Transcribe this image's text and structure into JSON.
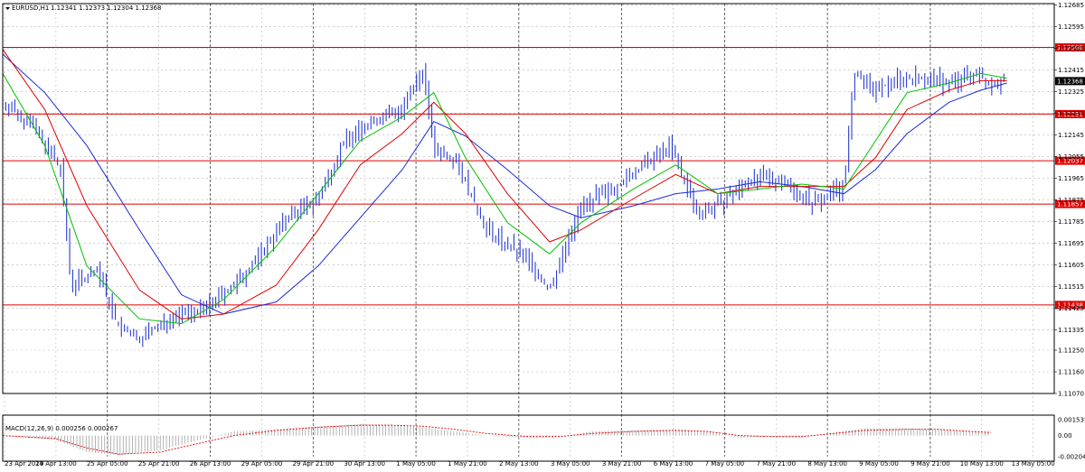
{
  "header": {
    "symbol": "EURUSD,H1",
    "ohlc": "1.12341 1.12373 1.12304 1.12368",
    "menu_icon": "triangle-down-icon"
  },
  "colors": {
    "candles": "#2a3ecf",
    "ma_fast": "#00c000",
    "ma_mid": "#e00000",
    "ma_slow": "#1c2bd8",
    "level_line": "#e00000",
    "level_tag_bg": "#e00000",
    "price_tag_bg": "#000000",
    "grid": "#b4b4b4",
    "macd_hist": "#a0a0a0",
    "macd_signal": "#e00000"
  },
  "chart_data": [
    {
      "type": "candlestick",
      "title": "EURUSD,H1",
      "ylim": [
        1.1107,
        1.1269
      ],
      "y_ticks": [
        "1.12685",
        "1.12595",
        "1.12505",
        "1.12415",
        "1.12325",
        "1.12235",
        "1.12145",
        "1.12055",
        "1.11965",
        "1.11875",
        "1.11785",
        "1.11695",
        "1.11605",
        "1.11515",
        "1.11425",
        "1.11335",
        "1.11250",
        "1.11160",
        "1.11070"
      ],
      "x_labels": [
        "23 Apr 2019",
        "24 Apr 13:00",
        "25 Apr 05:00",
        "25 Apr 21:00",
        "26 Apr 13:00",
        "29 Apr 05:00",
        "29 Apr 21:00",
        "30 Apr 13:00",
        "1 May 05:00",
        "1 May 21:00",
        "2 May 13:00",
        "3 May 05:00",
        "3 May 21:00",
        "6 May 13:00",
        "7 May 05:00",
        "7 May 21:00",
        "8 May 13:00",
        "9 May 05:00",
        "9 May 21:00",
        "10 May 13:00",
        "13 May 05:00"
      ],
      "horizontal_levels": [
        "1.12508",
        "1.12231",
        "1.12037",
        "1.11857",
        "1.11438"
      ],
      "last_price": "1.12368",
      "price_path": [
        [
          0,
          1.1228
        ],
        [
          0.03,
          1.1218
        ],
        [
          0.055,
          1.12
        ],
        [
          0.065,
          1.1152
        ],
        [
          0.09,
          1.1158
        ],
        [
          0.11,
          1.1135
        ],
        [
          0.13,
          1.113
        ],
        [
          0.16,
          1.1138
        ],
        [
          0.19,
          1.1142
        ],
        [
          0.22,
          1.1152
        ],
        [
          0.24,
          1.1162
        ],
        [
          0.27,
          1.118
        ],
        [
          0.3,
          1.1188
        ],
        [
          0.325,
          1.1212
        ],
        [
          0.35,
          1.122
        ],
        [
          0.38,
          1.1225
        ],
        [
          0.4,
          1.1242
        ],
        [
          0.41,
          1.1208
        ],
        [
          0.43,
          1.1205
        ],
        [
          0.46,
          1.1175
        ],
        [
          0.5,
          1.1162
        ],
        [
          0.52,
          1.115
        ],
        [
          0.55,
          1.1185
        ],
        [
          0.58,
          1.1192
        ],
        [
          0.61,
          1.1202
        ],
        [
          0.635,
          1.121
        ],
        [
          0.66,
          1.1182
        ],
        [
          0.68,
          1.1185
        ],
        [
          0.71,
          1.1196
        ],
        [
          0.74,
          1.1196
        ],
        [
          0.77,
          1.1186
        ],
        [
          0.8,
          1.1194
        ],
        [
          0.81,
          1.124
        ],
        [
          0.83,
          1.1232
        ],
        [
          0.85,
          1.1238
        ],
        [
          0.87,
          1.1238
        ],
        [
          0.9,
          1.1236
        ],
        [
          0.925,
          1.124
        ],
        [
          0.94,
          1.1236
        ],
        [
          0.955,
          1.1238
        ]
      ],
      "ma_fast_path": [
        [
          0,
          1.124
        ],
        [
          0.04,
          1.121
        ],
        [
          0.08,
          1.116
        ],
        [
          0.13,
          1.1138
        ],
        [
          0.17,
          1.1136
        ],
        [
          0.21,
          1.1146
        ],
        [
          0.26,
          1.1168
        ],
        [
          0.3,
          1.119
        ],
        [
          0.34,
          1.1212
        ],
        [
          0.38,
          1.1222
        ],
        [
          0.41,
          1.1232
        ],
        [
          0.44,
          1.1205
        ],
        [
          0.48,
          1.1178
        ],
        [
          0.52,
          1.1165
        ],
        [
          0.55,
          1.1178
        ],
        [
          0.6,
          1.1192
        ],
        [
          0.64,
          1.1202
        ],
        [
          0.68,
          1.119
        ],
        [
          0.72,
          1.1192
        ],
        [
          0.76,
          1.1194
        ],
        [
          0.8,
          1.1192
        ],
        [
          0.83,
          1.1212
        ],
        [
          0.86,
          1.1232
        ],
        [
          0.9,
          1.1236
        ],
        [
          0.93,
          1.124
        ],
        [
          0.955,
          1.1238
        ]
      ],
      "ma_mid_path": [
        [
          0,
          1.125
        ],
        [
          0.04,
          1.1225
        ],
        [
          0.08,
          1.1185
        ],
        [
          0.13,
          1.115
        ],
        [
          0.17,
          1.1138
        ],
        [
          0.21,
          1.114
        ],
        [
          0.26,
          1.1152
        ],
        [
          0.3,
          1.1175
        ],
        [
          0.34,
          1.1202
        ],
        [
          0.38,
          1.1215
        ],
        [
          0.41,
          1.1228
        ],
        [
          0.44,
          1.1215
        ],
        [
          0.48,
          1.119
        ],
        [
          0.52,
          1.117
        ],
        [
          0.55,
          1.1175
        ],
        [
          0.6,
          1.1188
        ],
        [
          0.64,
          1.1198
        ],
        [
          0.68,
          1.119
        ],
        [
          0.72,
          1.1193
        ],
        [
          0.76,
          1.1193
        ],
        [
          0.8,
          1.1193
        ],
        [
          0.83,
          1.1205
        ],
        [
          0.86,
          1.1225
        ],
        [
          0.9,
          1.1233
        ],
        [
          0.93,
          1.1237
        ],
        [
          0.955,
          1.1237
        ]
      ],
      "ma_slow_path": [
        [
          0,
          1.1248
        ],
        [
          0.04,
          1.1232
        ],
        [
          0.08,
          1.121
        ],
        [
          0.13,
          1.1175
        ],
        [
          0.17,
          1.1148
        ],
        [
          0.21,
          1.114
        ],
        [
          0.26,
          1.1145
        ],
        [
          0.3,
          1.116
        ],
        [
          0.34,
          1.118
        ],
        [
          0.38,
          1.12
        ],
        [
          0.41,
          1.122
        ],
        [
          0.44,
          1.1214
        ],
        [
          0.48,
          1.12
        ],
        [
          0.52,
          1.1185
        ],
        [
          0.55,
          1.118
        ],
        [
          0.6,
          1.1185
        ],
        [
          0.64,
          1.119
        ],
        [
          0.68,
          1.1192
        ],
        [
          0.72,
          1.1195
        ],
        [
          0.76,
          1.1193
        ],
        [
          0.8,
          1.119
        ],
        [
          0.83,
          1.12
        ],
        [
          0.86,
          1.1215
        ],
        [
          0.9,
          1.1228
        ],
        [
          0.93,
          1.1233
        ],
        [
          0.955,
          1.1236
        ]
      ]
    },
    {
      "type": "bar",
      "title": "MACD(12,26,9) 0.000256 0.000267",
      "ylim": [
        -0.002041,
        0.001535
      ],
      "y_ticks": [
        "0.001535",
        "0.00",
        "-0.002041"
      ],
      "macd_path": [
        [
          0,
          0.0
        ],
        [
          0.05,
          -0.0004
        ],
        [
          0.08,
          -0.0016
        ],
        [
          0.11,
          -0.0019
        ],
        [
          0.15,
          -0.0014
        ],
        [
          0.18,
          -0.0006
        ],
        [
          0.22,
          0.0004
        ],
        [
          0.26,
          0.0006
        ],
        [
          0.3,
          0.0009
        ],
        [
          0.34,
          0.0011
        ],
        [
          0.37,
          0.001
        ],
        [
          0.4,
          0.0008
        ],
        [
          0.43,
          0.0004
        ],
        [
          0.46,
          0.0
        ],
        [
          0.5,
          -0.0002
        ],
        [
          0.53,
          -0.0001
        ],
        [
          0.56,
          0.0004
        ],
        [
          0.6,
          0.0005
        ],
        [
          0.64,
          0.0006
        ],
        [
          0.67,
          0.0004
        ],
        [
          0.7,
          -0.0002
        ],
        [
          0.73,
          -0.0001
        ],
        [
          0.76,
          -0.0002
        ],
        [
          0.79,
          0.0003
        ],
        [
          0.82,
          0.0007
        ],
        [
          0.86,
          0.0007
        ],
        [
          0.89,
          0.0006
        ],
        [
          0.92,
          0.0004
        ],
        [
          0.94,
          0.0003
        ]
      ],
      "signal_path": [
        [
          0,
          0.0
        ],
        [
          0.05,
          -0.0003
        ],
        [
          0.08,
          -0.0012
        ],
        [
          0.11,
          -0.0018
        ],
        [
          0.15,
          -0.0016
        ],
        [
          0.18,
          -0.0009
        ],
        [
          0.22,
          0.0
        ],
        [
          0.26,
          0.0005
        ],
        [
          0.3,
          0.0008
        ],
        [
          0.34,
          0.001
        ],
        [
          0.37,
          0.001
        ],
        [
          0.4,
          0.0009
        ],
        [
          0.43,
          0.0006
        ],
        [
          0.46,
          0.0002
        ],
        [
          0.5,
          -0.0001
        ],
        [
          0.53,
          -0.0001
        ],
        [
          0.56,
          0.0002
        ],
        [
          0.6,
          0.0004
        ],
        [
          0.64,
          0.0005
        ],
        [
          0.67,
          0.0004
        ],
        [
          0.7,
          0.0
        ],
        [
          0.73,
          -0.0001
        ],
        [
          0.76,
          -0.0001
        ],
        [
          0.79,
          0.0002
        ],
        [
          0.82,
          0.0005
        ],
        [
          0.86,
          0.0006
        ],
        [
          0.89,
          0.0006
        ],
        [
          0.92,
          0.0004
        ],
        [
          0.94,
          0.0003
        ]
      ]
    }
  ]
}
